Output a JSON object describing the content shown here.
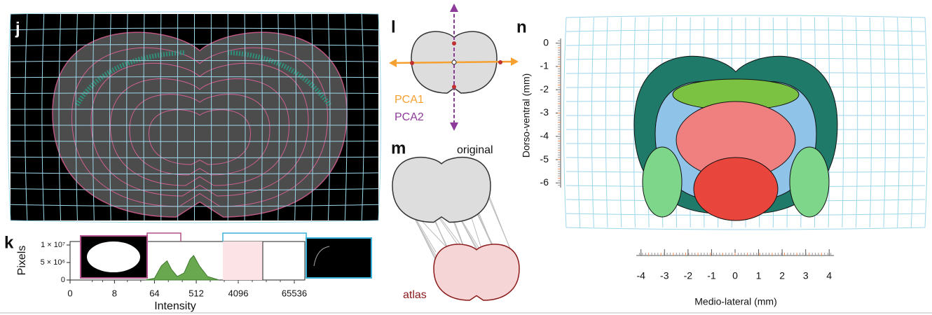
{
  "panels": {
    "j": {
      "letter": "j"
    },
    "k": {
      "letter": "k",
      "chart_data": {
        "type": "line",
        "ylabel": "Pixels",
        "xlabel": "Intensity",
        "log_scale_x": true,
        "color": "#6aa84f",
        "xlim": [
          0,
          65536
        ],
        "ylim": [
          0,
          11000000
        ],
        "xticks": [
          0,
          8,
          64,
          512,
          4096,
          65536
        ],
        "yticks": [
          0,
          {
            "value": 5000000,
            "label": "5 × 10⁶"
          },
          {
            "value": 10000000,
            "label": "1 × 10⁷"
          }
        ],
        "x": [
          40,
          64,
          90,
          120,
          150,
          200,
          280,
          380,
          450,
          600,
          900,
          1500
        ],
        "values": [
          0,
          500000,
          4000000,
          5500000,
          3000000,
          1000000,
          2000000,
          6000000,
          7000000,
          4000000,
          1000000,
          100000
        ]
      }
    },
    "l": {
      "letter": "l",
      "pca1": "PCA1",
      "pca2": "PCA2"
    },
    "m": {
      "letter": "m",
      "original": "original",
      "atlas": "atlas"
    },
    "n": {
      "letter": "n",
      "chart_data": {
        "type": "axes",
        "ylabel": "Dorso-ventral (mm)",
        "xlabel": "Medio-lateral (mm)",
        "xlim": [
          -4.2,
          4.2
        ],
        "ylim": [
          -6.2,
          0.2
        ],
        "xticks": [
          -4,
          -3,
          -2,
          -1,
          0,
          1,
          2,
          3,
          4
        ],
        "yticks": [
          0,
          -1,
          -2,
          -3,
          -4,
          -5,
          -6
        ]
      }
    }
  }
}
